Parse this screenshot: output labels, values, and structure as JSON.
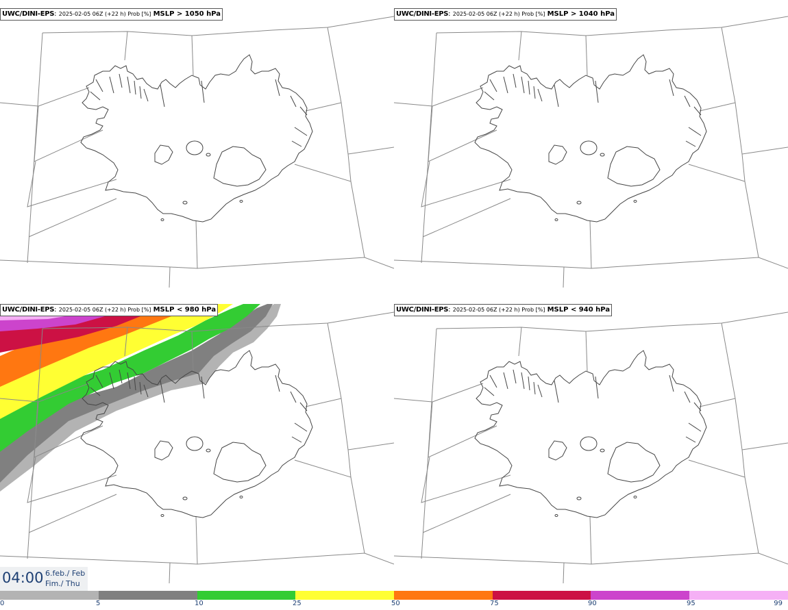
{
  "panels": [
    {
      "model": "UWC/DINI-EPS",
      "meta": "2025-02-05 06Z (+22 h) Prob [%]",
      "param": "MSLP > 1050 hPa",
      "shaded": false
    },
    {
      "model": "UWC/DINI-EPS",
      "meta": "2025-02-05 06Z (+22 h) Prob [%]",
      "param": "MSLP > 1040 hPa",
      "shaded": false
    },
    {
      "model": "UWC/DINI-EPS",
      "meta": "2025-02-05 06Z (+22 h) Prob [%]",
      "param": "MSLP < 980 hPa",
      "shaded": true
    },
    {
      "model": "UWC/DINI-EPS",
      "meta": "2025-02-05 06Z (+22 h) Prob [%]",
      "param": "MSLP < 940 hPa",
      "shaded": false
    }
  ],
  "time": {
    "clock": "04:00",
    "date_line1": "6.feb./ Feb",
    "date_line2": "Fim./ Thu"
  },
  "colorbar": {
    "ticks": [
      "0",
      "5",
      "10",
      "25",
      "50",
      "75",
      "90",
      "95",
      "99"
    ],
    "colors": [
      "#ffffff",
      "#b3b3b3",
      "#808080",
      "#33cc33",
      "#ffff33",
      "#ff7711",
      "#cc1144",
      "#cc44cc",
      "#f5b0f5"
    ]
  }
}
